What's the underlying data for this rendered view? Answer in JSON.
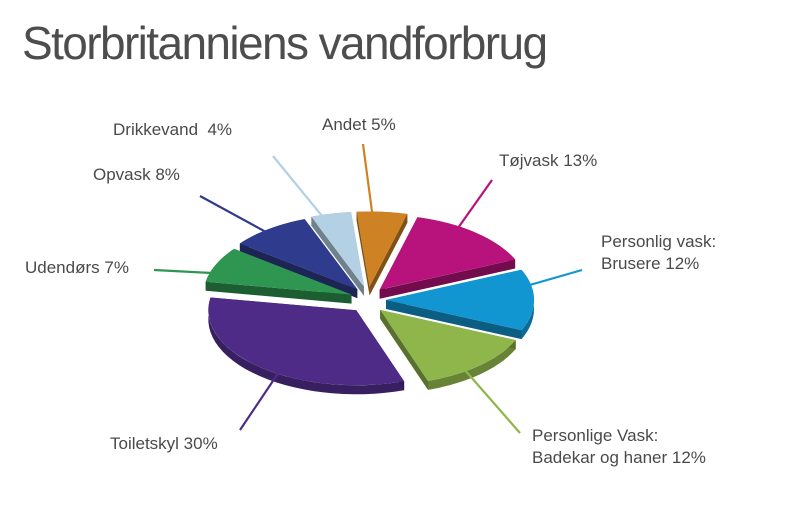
{
  "title": "Storbritanniens vandforbrug",
  "chart_data": {
    "type": "pie",
    "style": "3d-exploded",
    "title": "Storbritanniens vandforbrug",
    "slices": [
      {
        "label": "Andet",
        "value": 5,
        "label_text": "Andet 5%",
        "color": "#cf8224"
      },
      {
        "label": "Tøjvask",
        "value": 13,
        "label_text": "Tøjvask 13%",
        "color": "#b8137c"
      },
      {
        "label": "Personlig vask: Brusere",
        "value": 12,
        "label_lines": [
          "Personlig vask:",
          "Brusere 12%"
        ],
        "color": "#1196d2"
      },
      {
        "label": "Personlige Vask: Badekar og haner",
        "value": 12,
        "label_lines": [
          "Personlige Vask:",
          "Badekar og haner 12%"
        ],
        "color": "#8fb64a"
      },
      {
        "label": "Toiletskyl",
        "value": 30,
        "label_text": "Toiletskyl 30%",
        "color": "#4d2b86"
      },
      {
        "label": "Udendørs",
        "value": 7,
        "label_text": "Udendørs 7%",
        "color": "#2f9651"
      },
      {
        "label": "Opvask",
        "value": 8,
        "label_text": "Opvask 8%",
        "color": "#2f3b8d"
      },
      {
        "label": "Drikkevand",
        "value": 4,
        "label_text": "Drikkevand  4%",
        "color": "#b3d0e4"
      }
    ]
  }
}
